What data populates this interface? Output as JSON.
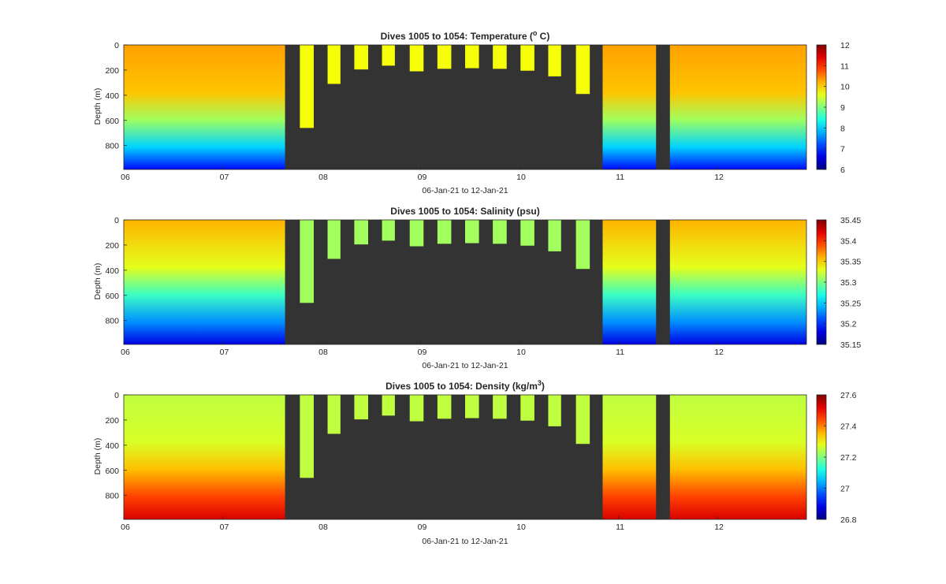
{
  "figure": {
    "background": "#ffffff",
    "gap_color": "#333333"
  },
  "chart_data": [
    {
      "type": "heatmap",
      "title": "Dives 1005 to 1054: Temperature (",
      "title_super": "o",
      "title_suffix": " C)",
      "xlabel": "06-Jan-21 to 12-Jan-21",
      "ylabel": "Depth (m)",
      "x_ticks": [
        "06",
        "07",
        "08",
        "09",
        "10",
        "11",
        "12"
      ],
      "xlim": [
        6.0,
        12.9
      ],
      "y_ticks": [
        0,
        200,
        400,
        600,
        800
      ],
      "ylim": [
        0,
        990
      ],
      "y_reversed": true,
      "colorbar": {
        "min": 6,
        "max": 12,
        "ticks": [
          6,
          7,
          8,
          9,
          10,
          11,
          12
        ],
        "colormap": "jet"
      },
      "profile_values": {
        "surface": 10.3,
        "upper_400": 10.1,
        "mid_600": 9.2,
        "lower_800": 8.0,
        "bottom": 6.8
      },
      "shallow_value": 9.7,
      "field": "temperature"
    },
    {
      "type": "heatmap",
      "title": "Dives 1005 to 1054: Salinity (psu)",
      "title_super": "",
      "title_suffix": "",
      "xlabel": "06-Jan-21 to 12-Jan-21",
      "ylabel": "Depth (m)",
      "x_ticks": [
        "06",
        "07",
        "08",
        "09",
        "10",
        "11",
        "12"
      ],
      "xlim": [
        6.0,
        12.9
      ],
      "y_ticks": [
        0,
        200,
        400,
        600,
        800
      ],
      "ylim": [
        0,
        990
      ],
      "y_reversed": true,
      "colorbar": {
        "min": 35.15,
        "max": 35.45,
        "ticks": [
          35.15,
          35.2,
          35.25,
          35.3,
          35.35,
          35.4,
          35.45
        ],
        "colormap": "jet"
      },
      "profile_values": {
        "surface": 35.36,
        "upper_400": 35.33,
        "mid_600": 35.28,
        "lower_800": 35.23,
        "bottom": 35.18
      },
      "shallow_value": 35.31,
      "field": "salinity"
    },
    {
      "type": "heatmap",
      "title": "Dives 1005 to 1054: Density (kg/m",
      "title_super": "3",
      "title_suffix": ")",
      "xlabel": "06-Jan-21 to 12-Jan-21",
      "ylabel": "Depth (m)",
      "x_ticks": [
        "06",
        "07",
        "08",
        "09",
        "10",
        "11",
        "12"
      ],
      "xlim": [
        6.0,
        12.9
      ],
      "y_ticks": [
        0,
        200,
        400,
        600,
        800
      ],
      "ylim": [
        0,
        990
      ],
      "y_reversed": true,
      "colorbar": {
        "min": 26.8,
        "max": 27.6,
        "ticks": [
          26.8,
          27,
          27.2,
          27.4,
          27.6
        ],
        "colormap": "jet"
      },
      "profile_values": {
        "surface": 27.25,
        "upper_400": 27.27,
        "mid_600": 27.35,
        "lower_800": 27.45,
        "bottom": 27.53
      },
      "shallow_value": 27.25,
      "field": "density"
    }
  ],
  "sampling": {
    "full_depth_blocks": [
      {
        "start": 6.0,
        "end": 7.63,
        "max_depth": 990
      },
      {
        "start": 10.84,
        "end": 11.38,
        "max_depth": 990
      },
      {
        "start": 11.52,
        "end": 12.9,
        "max_depth": 990
      }
    ],
    "shallow_dives": [
      {
        "start": 7.78,
        "end": 7.92,
        "max_depth": 660
      },
      {
        "start": 8.06,
        "end": 8.19,
        "max_depth": 310
      },
      {
        "start": 8.33,
        "end": 8.47,
        "max_depth": 195
      },
      {
        "start": 8.61,
        "end": 8.74,
        "max_depth": 165
      },
      {
        "start": 8.89,
        "end": 9.03,
        "max_depth": 210
      },
      {
        "start": 9.17,
        "end": 9.31,
        "max_depth": 190
      },
      {
        "start": 9.45,
        "end": 9.59,
        "max_depth": 185
      },
      {
        "start": 9.73,
        "end": 9.87,
        "max_depth": 190
      },
      {
        "start": 10.01,
        "end": 10.15,
        "max_depth": 205
      },
      {
        "start": 10.29,
        "end": 10.42,
        "max_depth": 250
      },
      {
        "start": 10.57,
        "end": 10.71,
        "max_depth": 390
      }
    ]
  }
}
